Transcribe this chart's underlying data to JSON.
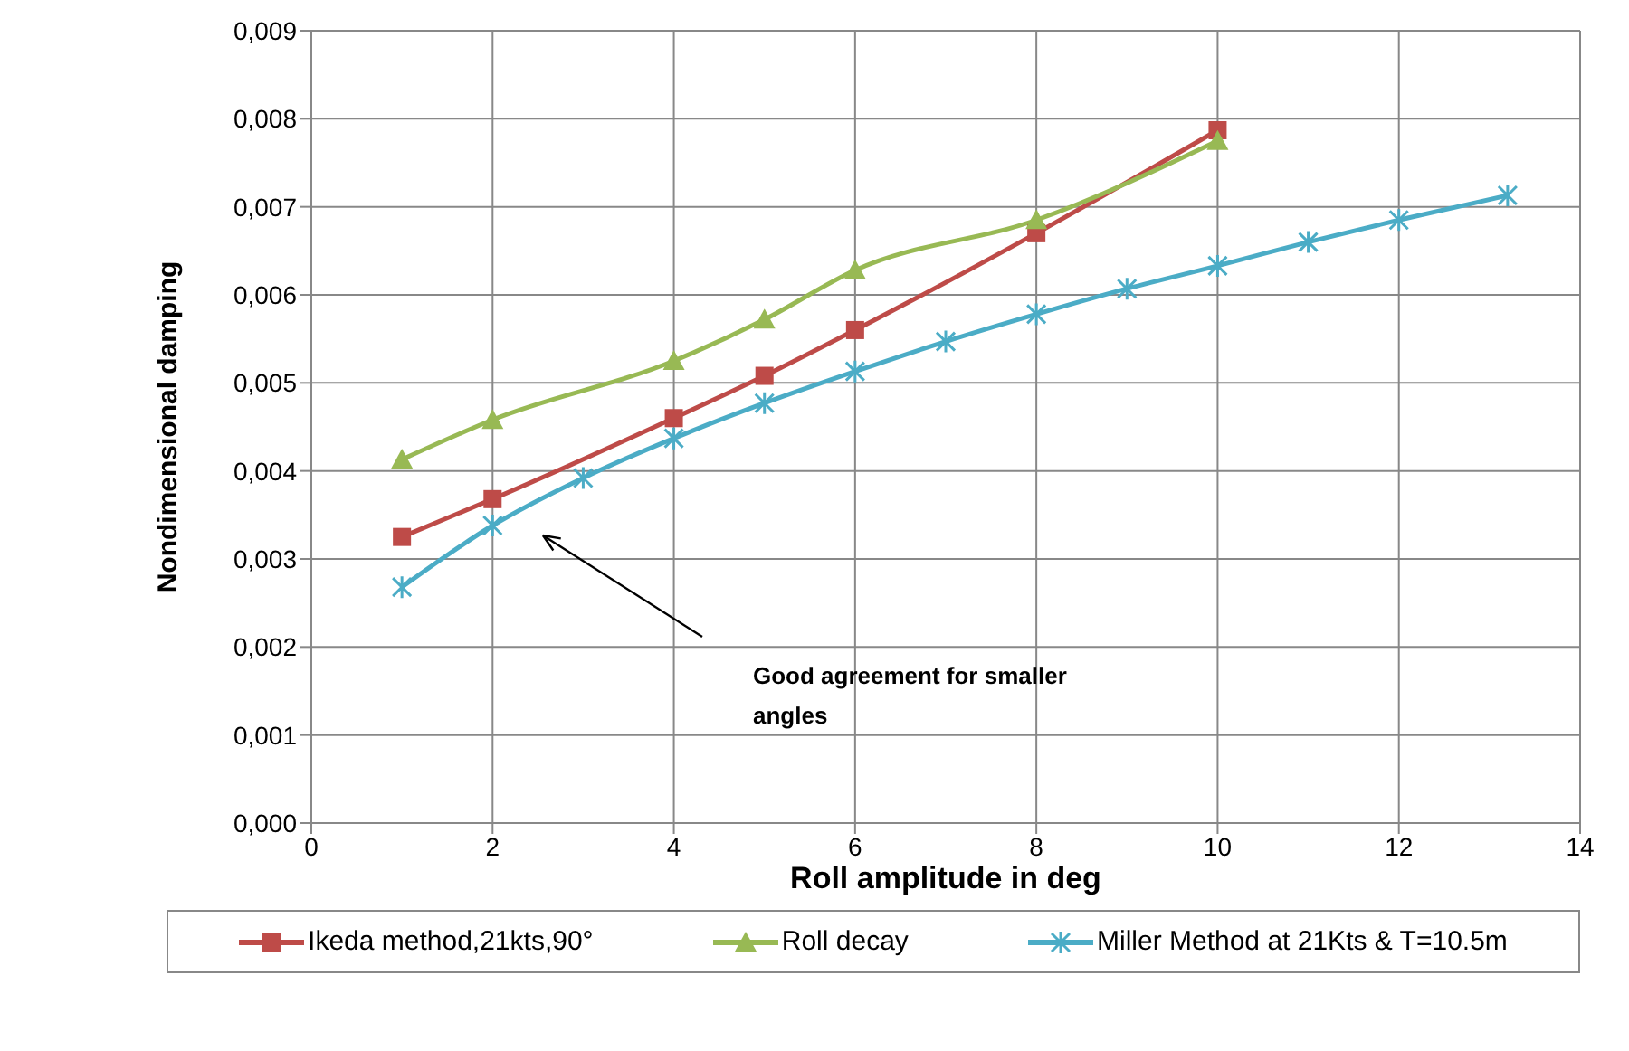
{
  "chart_data": {
    "type": "line",
    "xlabel": "Roll amplitude in deg",
    "ylabel": "Nondimensional damping",
    "xlim": [
      0,
      14
    ],
    "xticks": [
      0,
      2,
      4,
      6,
      8,
      10,
      12,
      14
    ],
    "ylim": [
      0,
      0.009
    ],
    "yticks": [
      {
        "value": 0,
        "label": "0,000"
      },
      {
        "value": 0.001,
        "label": "0,001"
      },
      {
        "value": 0.002,
        "label": "0,002"
      },
      {
        "value": 0.003,
        "label": "0,003"
      },
      {
        "value": 0.004,
        "label": "0,004"
      },
      {
        "value": 0.005,
        "label": "0,005"
      },
      {
        "value": 0.006,
        "label": "0,006"
      },
      {
        "value": 0.007,
        "label": "0,007"
      },
      {
        "value": 0.008,
        "label": "0,008"
      },
      {
        "value": 0.009,
        "label": "0,009"
      }
    ],
    "grid": true,
    "legend": "bottom",
    "annotations": [
      "Good agreement for smaller angles"
    ],
    "series": [
      {
        "name": "Ikeda method,21kts,90°",
        "color": "#be4b48",
        "marker": "square",
        "x": [
          1,
          2,
          4,
          5,
          6,
          8,
          10
        ],
        "values": [
          0.00325,
          0.00368,
          0.0046,
          0.00508,
          0.0056,
          0.0067,
          0.00787
        ]
      },
      {
        "name": "Roll decay",
        "color": "#98b954",
        "marker": "triangle",
        "x": [
          1,
          2,
          4,
          5,
          6,
          8,
          10
        ],
        "values": [
          0.00413,
          0.00458,
          0.00525,
          0.00572,
          0.00628,
          0.00685,
          0.00775
        ]
      },
      {
        "name": "Miller Method at 21Kts & T=10.5m",
        "color": "#4bacc6",
        "marker": "cross",
        "x": [
          1,
          2,
          3,
          4,
          5,
          6,
          7,
          8,
          9,
          10,
          11,
          12,
          13.2
        ],
        "values": [
          0.00268,
          0.00338,
          0.00392,
          0.00437,
          0.00477,
          0.00513,
          0.00547,
          0.00578,
          0.00607,
          0.00633,
          0.0066,
          0.00685,
          0.00713
        ]
      }
    ]
  }
}
